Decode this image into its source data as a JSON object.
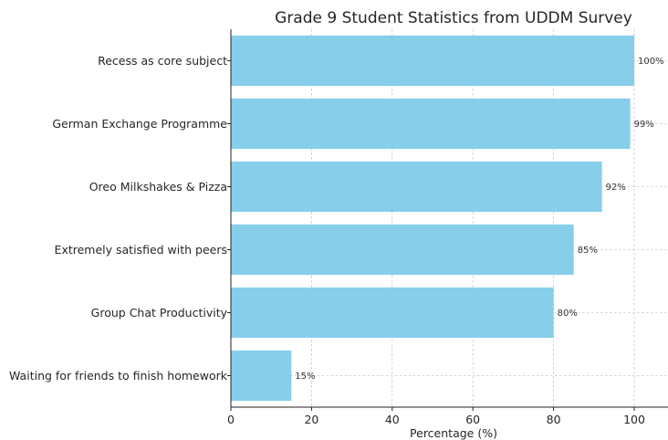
{
  "chart_data": {
    "type": "bar",
    "orientation": "horizontal",
    "title": "Grade 9 Student Statistics from UDDM Survey",
    "xlabel": "Percentage (%)",
    "ylabel": "",
    "categories": [
      "Recess as core subject",
      "German Exchange Programme",
      "Oreo Milkshakes & Pizza",
      "Extremely satisfied with peers",
      "Group Chat Productivity",
      "Waiting for friends to finish homework"
    ],
    "values": [
      100,
      99,
      92,
      85,
      80,
      15
    ],
    "value_labels": [
      "100%",
      "99%",
      "92%",
      "85%",
      "80%",
      "15%"
    ],
    "xlim": [
      0,
      108
    ],
    "xticks": [
      0,
      20,
      40,
      60,
      80,
      100
    ],
    "xtick_labels": [
      "0",
      "20",
      "40",
      "60",
      "80",
      "100"
    ],
    "grid": true,
    "bar_color": "#87ceeb"
  }
}
